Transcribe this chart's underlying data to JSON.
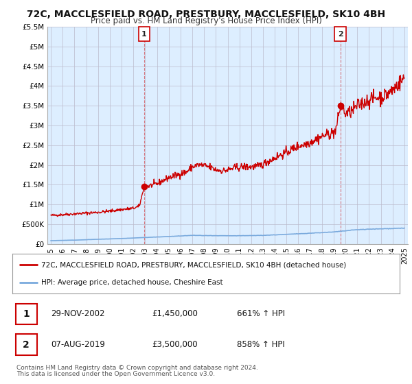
{
  "title": "72C, MACCLESFIELD ROAD, PRESTBURY, MACCLESFIELD, SK10 4BH",
  "subtitle": "Price paid vs. HM Land Registry's House Price Index (HPI)",
  "title_fontsize": 10,
  "subtitle_fontsize": 8.5,
  "legend_line1": "72C, MACCLESFIELD ROAD, PRESTBURY, MACCLESFIELD, SK10 4BH (detached house)",
  "legend_line2": "HPI: Average price, detached house, Cheshire East",
  "footer1": "Contains HM Land Registry data © Crown copyright and database right 2024.",
  "footer2": "This data is licensed under the Open Government Licence v3.0.",
  "transaction1_label": "1",
  "transaction1_date": "29-NOV-2002",
  "transaction1_price": "£1,450,000",
  "transaction1_hpi": "661% ↑ HPI",
  "transaction2_label": "2",
  "transaction2_date": "07-AUG-2019",
  "transaction2_price": "£3,500,000",
  "transaction2_hpi": "858% ↑ HPI",
  "ylim": [
    0,
    5500000
  ],
  "yticks": [
    0,
    500000,
    1000000,
    1500000,
    2000000,
    2500000,
    3000000,
    3500000,
    4000000,
    4500000,
    5000000,
    5500000
  ],
  "ytick_labels": [
    "£0",
    "£500K",
    "£1M",
    "£1.5M",
    "£2M",
    "£2.5M",
    "£3M",
    "£3.5M",
    "£4M",
    "£4.5M",
    "£5M",
    "£5.5M"
  ],
  "xlim_start": 1994.7,
  "xlim_end": 2025.3,
  "property_color": "#cc0000",
  "hpi_color": "#7aaadd",
  "marker1_x": 2002.92,
  "marker1_y": 1450000,
  "marker2_x": 2019.58,
  "marker2_y": 3500000,
  "vline_color": "#cc0000",
  "vline_alpha": 0.5,
  "chart_bg_color": "#ddeeff",
  "background_color": "#ffffff",
  "grid_color": "#bbbbcc",
  "xtick_years": [
    1995,
    1996,
    1997,
    1998,
    1999,
    2000,
    2001,
    2002,
    2003,
    2004,
    2005,
    2006,
    2007,
    2008,
    2009,
    2010,
    2011,
    2012,
    2013,
    2014,
    2015,
    2016,
    2017,
    2018,
    2019,
    2020,
    2021,
    2022,
    2023,
    2024,
    2025
  ]
}
